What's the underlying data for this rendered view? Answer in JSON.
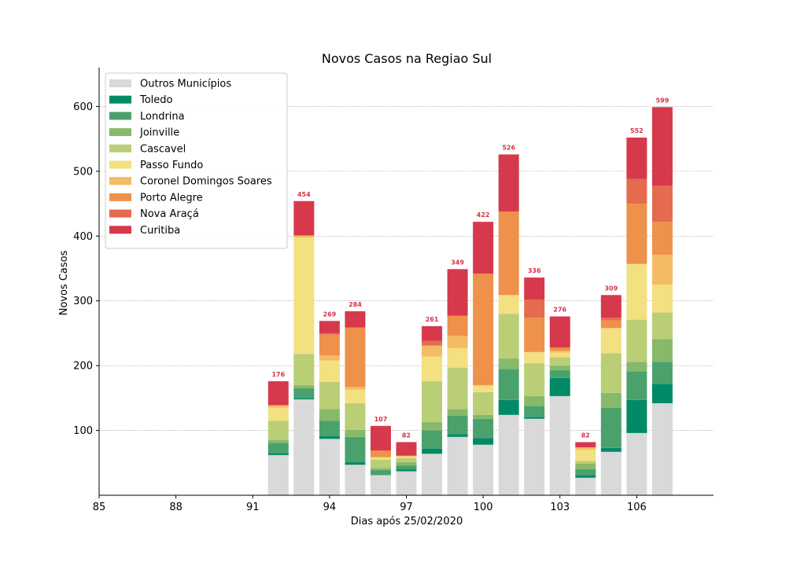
{
  "chart_data": {
    "type": "bar",
    "stacked": true,
    "title": "Novos Casos na Regiao Sul",
    "xlabel": "Dias após 25/02/2020",
    "ylabel": "Novos Casos",
    "xlim": [
      85,
      109
    ],
    "ylim": [
      0,
      660
    ],
    "xticks": [
      85,
      88,
      91,
      94,
      97,
      100,
      103,
      106
    ],
    "yticks": [
      100,
      200,
      300,
      400,
      500,
      600
    ],
    "grid": "horizontal",
    "legend_position": "top-left",
    "total_label_color": "#d6344a",
    "x": [
      92,
      93,
      94,
      95,
      96,
      97,
      98,
      99,
      100,
      101,
      102,
      103,
      104,
      105,
      106,
      107
    ],
    "totals": [
      176,
      454,
      269,
      284,
      107,
      82,
      261,
      349,
      422,
      526,
      336,
      276,
      82,
      309,
      552,
      599
    ],
    "series": [
      {
        "name": "Outros Municípios",
        "color": "#d9d9d9",
        "values": [
          62,
          148,
          87,
          47,
          31,
          37,
          64,
          90,
          78,
          124,
          118,
          153,
          27,
          67,
          96,
          142
        ]
      },
      {
        "name": "Toledo",
        "color": "#018a68",
        "values": [
          3,
          2,
          4,
          4,
          0,
          3,
          8,
          4,
          10,
          23,
          3,
          28,
          4,
          6,
          51,
          30
        ]
      },
      {
        "name": "Londrina",
        "color": "#4ba16c",
        "values": [
          16,
          15,
          24,
          39,
          8,
          6,
          28,
          29,
          30,
          48,
          17,
          12,
          9,
          62,
          44,
          34
        ]
      },
      {
        "name": "Joinville",
        "color": "#86b96a",
        "values": [
          4,
          5,
          18,
          11,
          3,
          5,
          13,
          10,
          6,
          16,
          15,
          7,
          9,
          23,
          15,
          35
        ]
      },
      {
        "name": "Cascavel",
        "color": "#b9ce75",
        "values": [
          30,
          48,
          42,
          41,
          13,
          6,
          63,
          64,
          35,
          69,
          51,
          13,
          4,
          61,
          65,
          41
        ]
      },
      {
        "name": "Passo Fundo",
        "color": "#f2e081",
        "values": [
          20,
          180,
          33,
          21,
          3,
          3,
          38,
          30,
          10,
          29,
          17,
          7,
          17,
          39,
          86,
          43
        ]
      },
      {
        "name": "Coronel Domingos Soares",
        "color": "#f5bb63",
        "values": [
          4,
          3,
          8,
          4,
          1,
          1,
          17,
          19,
          1,
          0,
          0,
          3,
          4,
          0,
          0,
          46
        ]
      },
      {
        "name": "Porto Alegre",
        "color": "#ee914b",
        "values": [
          0,
          0,
          32,
          92,
          10,
          0,
          0,
          31,
          172,
          129,
          53,
          5,
          0,
          12,
          93,
          51
        ]
      },
      {
        "name": "Nova Araçá",
        "color": "#e46b4e",
        "values": [
          0,
          0,
          2,
          0,
          0,
          0,
          7,
          0,
          0,
          0,
          28,
          0,
          0,
          4,
          38,
          56
        ]
      },
      {
        "name": "Curitiba",
        "color": "#d6394c",
        "values": [
          37,
          53,
          19,
          25,
          38,
          21,
          23,
          72,
          80,
          88,
          34,
          48,
          8,
          35,
          64,
          121
        ]
      }
    ]
  }
}
